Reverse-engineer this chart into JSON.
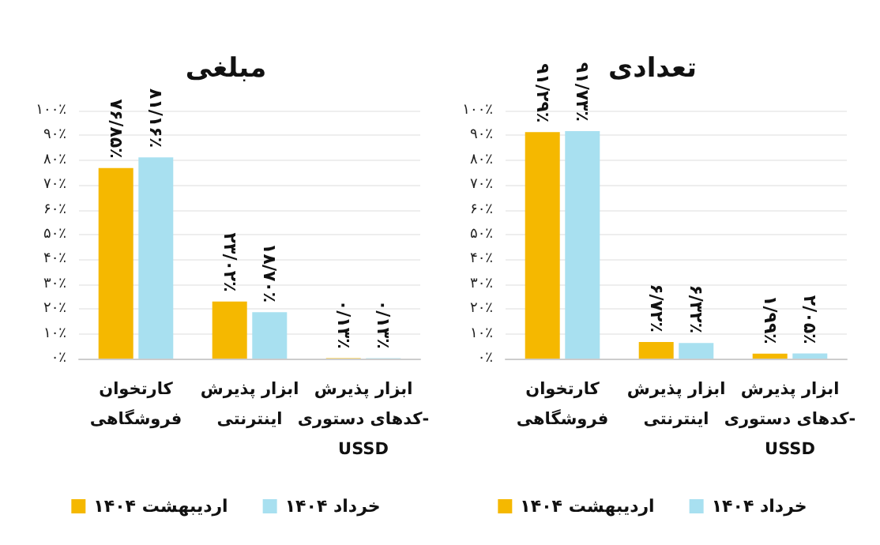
{
  "chart_data": [
    {
      "type": "bar",
      "title": "مبلغی",
      "categories": [
        "کارتخوان\nفروشگاهی",
        "ابزار پذیرش\nاینترنتی",
        "ابزار پذیرش\nکدهای دستوری-\nUSSD"
      ],
      "series": [
        {
          "name": "اردیبهشت ۱۴۰۴",
          "color": "#f5b800",
          "values": [
            76.85,
            23.02,
            0.13
          ],
          "value_labels": [
            "۷۶/۸۵٪",
            "۲۳/۰۲٪",
            "۰/۱۳٪"
          ]
        },
        {
          "name": "خرداد ۱۴۰۴",
          "color": "#a8e0f0",
          "values": [
            81.16,
            18.7,
            0.13
          ],
          "value_labels": [
            "۸۱/۱۶٪",
            "۱۸/۷۰٪",
            "۰/۱۳٪"
          ]
        }
      ],
      "ylim": [
        0,
        100
      ],
      "yticks": [
        {
          "value": 0,
          "label": "۰٪"
        },
        {
          "value": 10,
          "label": "۱۰٪"
        },
        {
          "value": 20,
          "label": "۲۰٪"
        },
        {
          "value": 30,
          "label": "۳۰٪"
        },
        {
          "value": 40,
          "label": "۴۰٪"
        },
        {
          "value": 50,
          "label": "۵۰٪"
        },
        {
          "value": 60,
          "label": "۶۰٪"
        },
        {
          "value": 70,
          "label": "۷۰٪"
        },
        {
          "value": 80,
          "label": "۸۰٪"
        },
        {
          "value": 90,
          "label": "۹۰٪"
        },
        {
          "value": 100,
          "label": "۱۰۰٪"
        }
      ],
      "grid": "y",
      "legend": "bottom"
    },
    {
      "type": "bar",
      "title": "تعدادی",
      "categories": [
        "کارتخوان\nفروشگاهی",
        "ابزار پذیرش\nاینترنتی",
        "ابزار پذیرش\nکدهای دستوری-\nUSSD"
      ],
      "series": [
        {
          "name": "اردیبهشت ۱۴۰۴",
          "color": "#f5b800",
          "values": [
            91.29,
            6.72,
            1.99
          ],
          "value_labels": [
            "۹۱/۲۹٪",
            "۶/۷۲٪",
            "۱/۹۹٪"
          ]
        },
        {
          "name": "خرداد ۱۴۰۴",
          "color": "#a8e0f0",
          "values": [
            91.73,
            6.32,
            2.05
          ],
          "value_labels": [
            "۹۱/۷۳٪",
            "۶/۳۲٪",
            "۲/۰۵٪"
          ]
        }
      ],
      "ylim": [
        0,
        100
      ],
      "yticks": [
        {
          "value": 0,
          "label": "۰٪"
        },
        {
          "value": 10,
          "label": "۱۰٪"
        },
        {
          "value": 20,
          "label": "۲۰٪"
        },
        {
          "value": 30,
          "label": "۳۰٪"
        },
        {
          "value": 40,
          "label": "۴۰٪"
        },
        {
          "value": 50,
          "label": "۵۰٪"
        },
        {
          "value": 60,
          "label": "۶۰٪"
        },
        {
          "value": 70,
          "label": "۷۰٪"
        },
        {
          "value": 80,
          "label": "۸۰٪"
        },
        {
          "value": 90,
          "label": "۹۰٪"
        },
        {
          "value": 100,
          "label": "۱۰۰٪"
        }
      ],
      "grid": "y",
      "legend": "bottom"
    }
  ]
}
